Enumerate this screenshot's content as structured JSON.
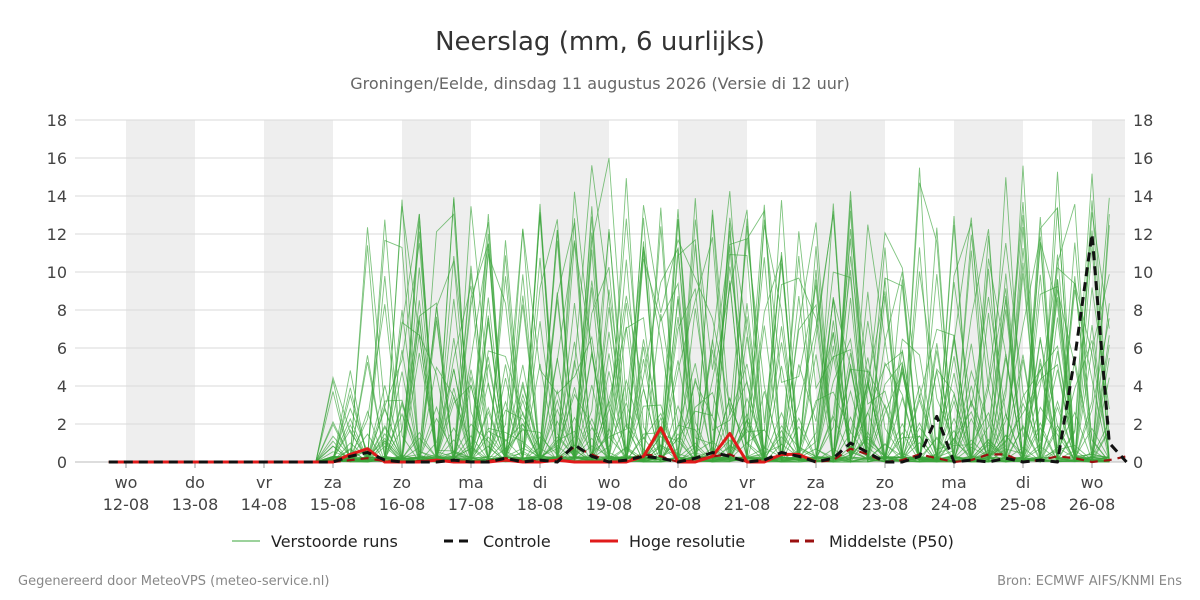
{
  "chart_data": {
    "type": "line",
    "title": "Neerslag (mm, 6 uurlijks)",
    "subtitle": "Groningen/Eelde, dinsdag 11 augustus 2026 (Versie di 12 uur)",
    "ylim": [
      0,
      18
    ],
    "yticks": [
      0,
      2,
      4,
      6,
      8,
      10,
      12,
      14,
      16,
      18
    ],
    "x_days": [
      {
        "day": "wo",
        "date": "12-08"
      },
      {
        "day": "do",
        "date": "13-08"
      },
      {
        "day": "vr",
        "date": "14-08"
      },
      {
        "day": "za",
        "date": "15-08"
      },
      {
        "day": "zo",
        "date": "16-08"
      },
      {
        "day": "ma",
        "date": "17-08"
      },
      {
        "day": "di",
        "date": "18-08"
      },
      {
        "day": "wo",
        "date": "19-08"
      },
      {
        "day": "do",
        "date": "20-08"
      },
      {
        "day": "vr",
        "date": "21-08"
      },
      {
        "day": "za",
        "date": "22-08"
      },
      {
        "day": "zo",
        "date": "23-08"
      },
      {
        "day": "ma",
        "date": "24-08"
      },
      {
        "day": "di",
        "date": "25-08"
      },
      {
        "day": "wo",
        "date": "26-08"
      }
    ],
    "x_range_days": [
      -0.25,
      14.5
    ],
    "shaded_days": [
      0,
      2,
      4,
      6,
      8,
      10,
      12,
      14
    ],
    "grid": true,
    "legend_position": "bottom",
    "series": [
      {
        "name": "Verstoorde runs",
        "color": "#3aa53a",
        "style": "thin"
      },
      {
        "name": "Controle",
        "color": "#111111",
        "style": "dashed",
        "x": [
          -0.25,
          0,
          0.25,
          0.5,
          0.75,
          1,
          1.25,
          1.5,
          1.75,
          2,
          2.25,
          2.5,
          2.75,
          3,
          3.25,
          3.5,
          3.75,
          4,
          4.25,
          4.5,
          4.75,
          5,
          5.25,
          5.5,
          5.75,
          6,
          6.25,
          6.5,
          6.75,
          7,
          7.25,
          7.5,
          7.75,
          8,
          8.25,
          8.5,
          8.75,
          9,
          9.25,
          9.5,
          9.75,
          10,
          10.25,
          10.5,
          10.75,
          11,
          11.25,
          11.5,
          11.75,
          12,
          12.25,
          12.5,
          12.75,
          13,
          13.25,
          13.5,
          13.75,
          14,
          14.25,
          14.5
        ],
        "values": [
          0,
          0,
          0,
          0,
          0,
          0,
          0,
          0,
          0,
          0,
          0,
          0,
          0,
          0,
          0.3,
          0.5,
          0.1,
          0,
          0,
          0,
          0.1,
          0,
          0,
          0.2,
          0,
          0.1,
          0,
          0.9,
          0.3,
          0,
          0.1,
          0.3,
          0.2,
          0,
          0.2,
          0.5,
          0.3,
          0,
          0.1,
          0.5,
          0.3,
          0,
          0.2,
          1.0,
          0.5,
          0,
          0,
          0.3,
          2.4,
          0,
          0.1,
          0,
          0.2,
          0,
          0.1,
          0,
          5.5,
          12.0,
          1.0,
          0
        ]
      },
      {
        "name": "Hoge resolutie",
        "color": "#e01b1b",
        "style": "thick",
        "x": [
          -0.25,
          0,
          0.25,
          0.5,
          0.75,
          1,
          1.25,
          1.5,
          1.75,
          2,
          2.25,
          2.5,
          2.75,
          3,
          3.25,
          3.5,
          3.75,
          4,
          4.25,
          4.5,
          4.75,
          5,
          5.25,
          5.5,
          5.75,
          6,
          6.25,
          6.5,
          6.75,
          7,
          7.25,
          7.5,
          7.75,
          8,
          8.25,
          8.5,
          8.75,
          9,
          9.25,
          9.5,
          9.75,
          10
        ],
        "values": [
          0,
          0,
          0,
          0,
          0,
          0,
          0,
          0,
          0,
          0,
          0,
          0,
          0,
          0,
          0.4,
          0.7,
          0,
          0,
          0,
          0.1,
          0,
          0,
          0,
          0.1,
          0,
          0,
          0.1,
          0,
          0,
          0,
          0,
          0.3,
          1.8,
          0,
          0,
          0.3,
          1.5,
          0,
          0,
          0.4,
          0.4,
          0
        ]
      },
      {
        "name": "Middelste (P50)",
        "color": "#9b1010",
        "style": "dashed",
        "x": [
          -0.25,
          0,
          0.25,
          0.5,
          0.75,
          1,
          1.25,
          1.5,
          1.75,
          2,
          2.25,
          2.5,
          2.75,
          3,
          3.25,
          3.5,
          3.75,
          4,
          4.25,
          4.5,
          4.75,
          5,
          5.25,
          5.5,
          5.75,
          6,
          6.25,
          6.5,
          6.75,
          7,
          7.25,
          7.5,
          7.75,
          8,
          8.25,
          8.5,
          8.75,
          9,
          9.25,
          9.5,
          9.75,
          10,
          10.25,
          10.5,
          10.75,
          11,
          11.25,
          11.5,
          11.75,
          12,
          12.25,
          12.5,
          12.75,
          13,
          13.25,
          13.5,
          13.75,
          14,
          14.25,
          14.5
        ],
        "values": [
          0,
          0,
          0,
          0,
          0,
          0,
          0,
          0,
          0,
          0,
          0,
          0,
          0,
          0,
          0.1,
          0.2,
          0.05,
          0,
          0.05,
          0.1,
          0.05,
          0,
          0.05,
          0.2,
          0.05,
          0.05,
          0.1,
          0.8,
          0.4,
          0,
          0.05,
          0.4,
          0.3,
          0,
          0.1,
          0.3,
          0.4,
          0,
          0.1,
          0.4,
          0.3,
          0,
          0.1,
          0.7,
          0.4,
          0,
          0.1,
          0.4,
          0.2,
          0,
          0.1,
          0.4,
          0.4,
          0,
          0.1,
          0.3,
          0.2,
          0,
          0.1,
          0.3
        ]
      }
    ]
  },
  "legend": {
    "items": [
      {
        "label": "Verstoorde runs",
        "color": "#3aa53a",
        "style": "thin"
      },
      {
        "label": "Controle",
        "color": "#111111",
        "style": "dashed"
      },
      {
        "label": "Hoge resolutie",
        "color": "#e01b1b",
        "style": "thick"
      },
      {
        "label": "Middelste (P50)",
        "color": "#9b1010",
        "style": "dashed"
      }
    ]
  },
  "footer": {
    "left": "Gegenereerd door MeteoVPS (meteo-service.nl)",
    "right": "Bron: ECMWF AIFS/KNMI Ens"
  }
}
